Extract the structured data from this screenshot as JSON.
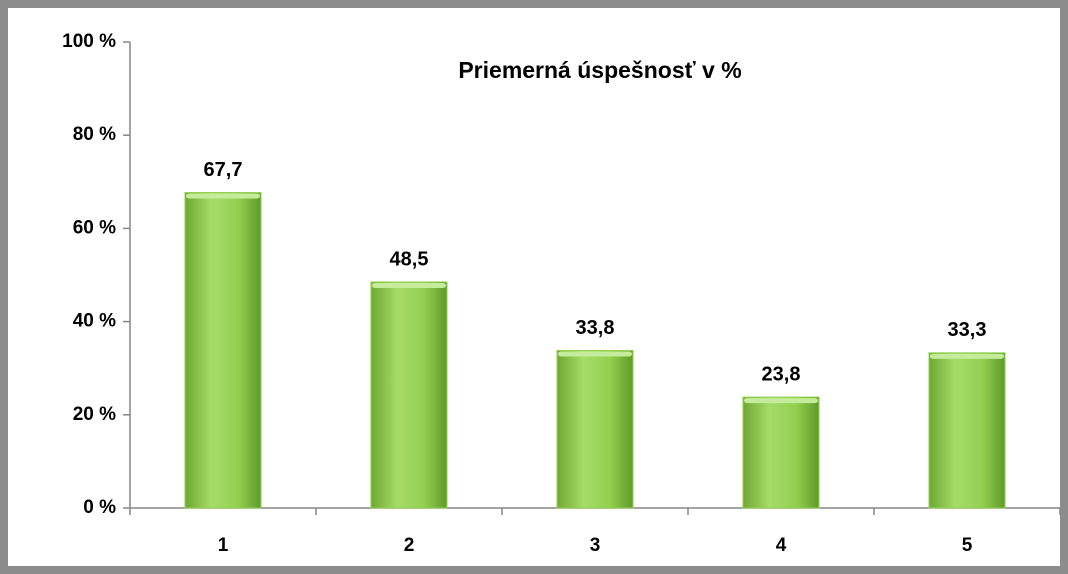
{
  "chart_data": {
    "type": "bar",
    "title": "Priemerná úspešnosť v %",
    "categories": [
      "1",
      "2",
      "3",
      "4",
      "5"
    ],
    "values": [
      67.7,
      48.5,
      33.8,
      23.8,
      33.3
    ],
    "value_labels": [
      "67,7",
      "48,5",
      "33,8",
      "23,8",
      "33,3"
    ],
    "color": "#92d050",
    "ylim": [
      0,
      100
    ],
    "yticks": [
      {
        "value": 0,
        "label": "0 %"
      },
      {
        "value": 20,
        "label": "20 %"
      },
      {
        "value": 40,
        "label": "40 %"
      },
      {
        "value": 60,
        "label": "60 %"
      },
      {
        "value": 80,
        "label": "80 %"
      },
      {
        "value": 100,
        "label": "100 %"
      }
    ],
    "grid": false
  }
}
